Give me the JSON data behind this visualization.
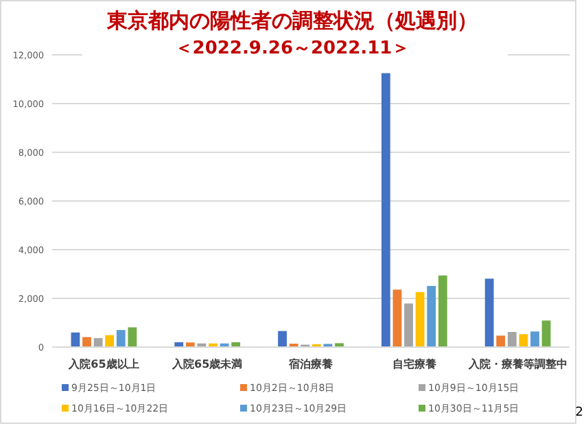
{
  "chart_data": {
    "type": "bar",
    "title": "東京都内の陽性者の調整状況（処遇別）",
    "subtitle": "＜2022.9.26～2022.11＞",
    "categories": [
      "入院65歳以上",
      "入院65歳未満",
      "宿泊療養",
      "自宅療養",
      "入院・療養等調整中"
    ],
    "series": [
      {
        "name": "9月25日～10月1日",
        "color": "#4472c4",
        "values": [
          600,
          200,
          660,
          11250,
          2810
        ]
      },
      {
        "name": "10月2日～10月8日",
        "color": "#ed7d31",
        "values": [
          410,
          190,
          140,
          2360,
          470
        ]
      },
      {
        "name": "10月9日～10月15日",
        "color": "#a5a5a5",
        "values": [
          370,
          150,
          100,
          1790,
          620
        ]
      },
      {
        "name": "10月16日～10月22日",
        "color": "#ffc000",
        "values": [
          490,
          150,
          120,
          2260,
          530
        ]
      },
      {
        "name": "10月23日～10月29日",
        "color": "#5b9bd5",
        "values": [
          700,
          150,
          130,
          2510,
          640
        ]
      },
      {
        "name": "10月30日～11月5日",
        "color": "#70ad47",
        "values": [
          810,
          200,
          160,
          2940,
          1090
        ]
      }
    ],
    "ylim": [
      0,
      12000
    ],
    "yticks": [
      {
        "value": 0,
        "label": "0"
      },
      {
        "value": 2000,
        "label": "2,000"
      },
      {
        "value": 4000,
        "label": "4,000"
      },
      {
        "value": 6000,
        "label": "6,000"
      },
      {
        "value": 8000,
        "label": "8,000"
      },
      {
        "value": 10000,
        "label": "10,000"
      },
      {
        "value": 12000,
        "label": "12,000"
      }
    ],
    "grid": "y",
    "legend": "bottom",
    "annotations": [
      "2"
    ]
  }
}
